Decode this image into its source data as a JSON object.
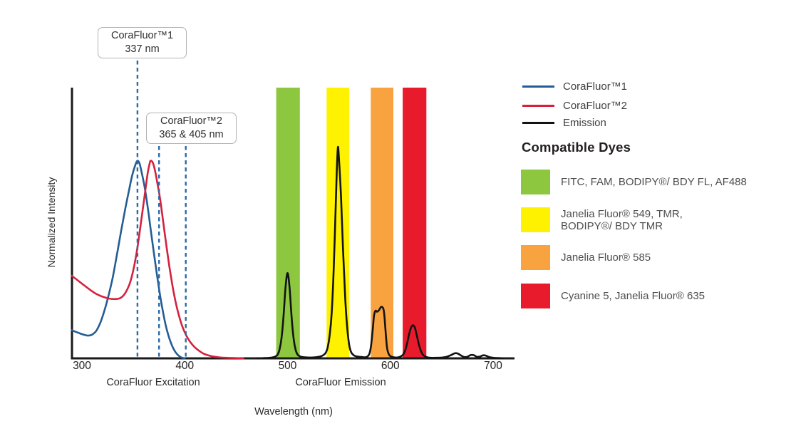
{
  "panel": {
    "heading": "Compatible Dyes",
    "legend": [
      {
        "label": "CoraFluor™1"
      },
      {
        "label": "CoraFluor™2"
      },
      {
        "label": "Emission"
      }
    ],
    "dyes": [
      {
        "label": "FITC, FAM, BODIPY®/ BDY FL, AF488",
        "color": "#8DC63F"
      },
      {
        "label": "Janelia Fluor® 549, TMR,\nBODIPY®/ BDY TMR",
        "color": "#FEF200"
      },
      {
        "label": "Janelia Fluor® 585",
        "color": "#F9A240"
      },
      {
        "label": "Cyanine 5, Janelia Fluor® 635",
        "color": "#E81B2D"
      }
    ]
  },
  "chart_data": {
    "type": "line",
    "title": "",
    "xlabel": "Wavelength (nm)",
    "ylabel": "Normalized Intensity",
    "x_range_nm": [
      290,
      720
    ],
    "ylim": [
      0,
      1
    ],
    "x_ticks": [
      300,
      400,
      500,
      600,
      700
    ],
    "x_region_labels": [
      {
        "text": "CoraFluor Excitation"
      },
      {
        "text": "CoraFluor Emission"
      }
    ],
    "marker_color": "#2C6AA5",
    "markers": [
      {
        "label": "CoraFluor™1\n337 nm",
        "label_nm": [
          337
        ],
        "lines_nm": [
          354
        ]
      },
      {
        "label": "CoraFluor™2\n365 & 405 nm",
        "label_nm": [
          365,
          405
        ],
        "lines_nm": [
          375,
          401
        ]
      }
    ],
    "bands": [
      {
        "name": "green-filter",
        "color": "#8DC63F",
        "nm": [
          489,
          512
        ]
      },
      {
        "name": "yellow-filter",
        "color": "#FEF200",
        "nm": [
          538,
          560
        ]
      },
      {
        "name": "orange-filter",
        "color": "#F9A240",
        "nm": [
          581,
          603
        ]
      },
      {
        "name": "red-filter",
        "color": "#E81B2D",
        "nm": [
          612,
          635
        ]
      }
    ],
    "emission_peaks_nm": [
      500,
      549,
      591,
      622,
      665,
      680,
      692
    ],
    "series": [
      {
        "name": "CoraFluor™1",
        "color": "#245D93",
        "points": [
          [
            290,
            0.104
          ],
          [
            294,
            0.098
          ],
          [
            298,
            0.092
          ],
          [
            302,
            0.087
          ],
          [
            306,
            0.084
          ],
          [
            310,
            0.088
          ],
          [
            314,
            0.102
          ],
          [
            318,
            0.133
          ],
          [
            322,
            0.178
          ],
          [
            326,
            0.234
          ],
          [
            330,
            0.3
          ],
          [
            334,
            0.382
          ],
          [
            338,
            0.468
          ],
          [
            342,
            0.55
          ],
          [
            346,
            0.625
          ],
          [
            349,
            0.678
          ],
          [
            352,
            0.715
          ],
          [
            354,
            0.73
          ],
          [
            356,
            0.72
          ],
          [
            358,
            0.688
          ],
          [
            361,
            0.632
          ],
          [
            364,
            0.558
          ],
          [
            367,
            0.473
          ],
          [
            370,
            0.388
          ],
          [
            373,
            0.308
          ],
          [
            376,
            0.233
          ],
          [
            379,
            0.168
          ],
          [
            382,
            0.114
          ],
          [
            385,
            0.074
          ],
          [
            388,
            0.044
          ],
          [
            391,
            0.023
          ],
          [
            394,
            0.01
          ],
          [
            397,
            0.003
          ],
          [
            400,
            0
          ]
        ]
      },
      {
        "name": "CoraFluor™2",
        "color": "#D5213E",
        "points": [
          [
            290,
            0.305
          ],
          [
            296,
            0.288
          ],
          [
            302,
            0.27
          ],
          [
            308,
            0.253
          ],
          [
            314,
            0.238
          ],
          [
            320,
            0.228
          ],
          [
            326,
            0.221
          ],
          [
            332,
            0.219
          ],
          [
            337,
            0.222
          ],
          [
            341,
            0.235
          ],
          [
            345,
            0.262
          ],
          [
            348,
            0.295
          ],
          [
            351,
            0.345
          ],
          [
            354,
            0.41
          ],
          [
            357,
            0.49
          ],
          [
            360,
            0.575
          ],
          [
            362,
            0.63
          ],
          [
            364,
            0.685
          ],
          [
            366,
            0.722
          ],
          [
            367,
            0.73
          ],
          [
            369,
            0.722
          ],
          [
            371,
            0.695
          ],
          [
            373,
            0.655
          ],
          [
            376,
            0.59
          ],
          [
            379,
            0.505
          ],
          [
            382,
            0.42
          ],
          [
            385,
            0.34
          ],
          [
            388,
            0.27
          ],
          [
            391,
            0.21
          ],
          [
            394,
            0.163
          ],
          [
            397,
            0.125
          ],
          [
            400,
            0.096
          ],
          [
            403,
            0.074
          ],
          [
            406,
            0.057
          ],
          [
            410,
            0.04
          ],
          [
            414,
            0.028
          ],
          [
            418,
            0.018
          ],
          [
            422,
            0.012
          ],
          [
            427,
            0.007
          ],
          [
            433,
            0.004
          ],
          [
            440,
            0.002
          ],
          [
            448,
            0.001
          ],
          [
            457,
            0
          ]
        ]
      },
      {
        "name": "Emission",
        "color": "#131313",
        "points": [
          [
            470,
            0
          ],
          [
            478,
            0.001
          ],
          [
            483,
            0.002
          ],
          [
            487,
            0.005
          ],
          [
            490,
            0.012
          ],
          [
            492,
            0.03
          ],
          [
            494,
            0.07
          ],
          [
            496,
            0.15
          ],
          [
            498,
            0.26
          ],
          [
            500,
            0.315
          ],
          [
            502,
            0.26
          ],
          [
            504,
            0.15
          ],
          [
            506,
            0.07
          ],
          [
            508,
            0.03
          ],
          [
            510,
            0.013
          ],
          [
            513,
            0.006
          ],
          [
            517,
            0.004
          ],
          [
            522,
            0.003
          ],
          [
            527,
            0.004
          ],
          [
            531,
            0.006
          ],
          [
            534,
            0.01
          ],
          [
            537,
            0.02
          ],
          [
            539,
            0.04
          ],
          [
            541,
            0.085
          ],
          [
            543,
            0.17
          ],
          [
            545,
            0.34
          ],
          [
            547,
            0.58
          ],
          [
            548,
            0.7
          ],
          [
            549,
            0.78
          ],
          [
            550,
            0.74
          ],
          [
            552,
            0.6
          ],
          [
            554,
            0.4
          ],
          [
            556,
            0.23
          ],
          [
            558,
            0.115
          ],
          [
            560,
            0.05
          ],
          [
            562,
            0.022
          ],
          [
            565,
            0.01
          ],
          [
            569,
            0.006
          ],
          [
            572,
            0.005
          ],
          [
            576,
            0.004
          ],
          [
            579,
            0.012
          ],
          [
            581,
            0.04
          ],
          [
            583,
            0.11
          ],
          [
            584,
            0.155
          ],
          [
            585,
            0.172
          ],
          [
            586,
            0.176
          ],
          [
            587,
            0.172
          ],
          [
            589,
            0.178
          ],
          [
            591,
            0.19
          ],
          [
            593,
            0.185
          ],
          [
            594,
            0.165
          ],
          [
            595,
            0.12
          ],
          [
            596,
            0.07
          ],
          [
            597,
            0.035
          ],
          [
            599,
            0.012
          ],
          [
            602,
            0.005
          ],
          [
            606,
            0.003
          ],
          [
            609,
            0.005
          ],
          [
            612,
            0.012
          ],
          [
            614,
            0.025
          ],
          [
            616,
            0.05
          ],
          [
            618,
            0.085
          ],
          [
            620,
            0.112
          ],
          [
            622,
            0.122
          ],
          [
            624,
            0.112
          ],
          [
            626,
            0.08
          ],
          [
            628,
            0.048
          ],
          [
            630,
            0.025
          ],
          [
            632,
            0.012
          ],
          [
            635,
            0.005
          ],
          [
            639,
            0.002
          ],
          [
            644,
            0.002
          ],
          [
            650,
            0.003
          ],
          [
            655,
            0.006
          ],
          [
            659,
            0.012
          ],
          [
            663,
            0.019
          ],
          [
            666,
            0.017
          ],
          [
            669,
            0.01
          ],
          [
            672,
            0.005
          ],
          [
            675,
            0.006
          ],
          [
            678,
            0.012
          ],
          [
            681,
            0.012
          ],
          [
            684,
            0.006
          ],
          [
            687,
            0.006
          ],
          [
            690,
            0.011
          ],
          [
            693,
            0.01
          ],
          [
            696,
            0.005
          ],
          [
            700,
            0.002
          ],
          [
            705,
            0.001
          ],
          [
            710,
            0
          ]
        ]
      }
    ]
  }
}
